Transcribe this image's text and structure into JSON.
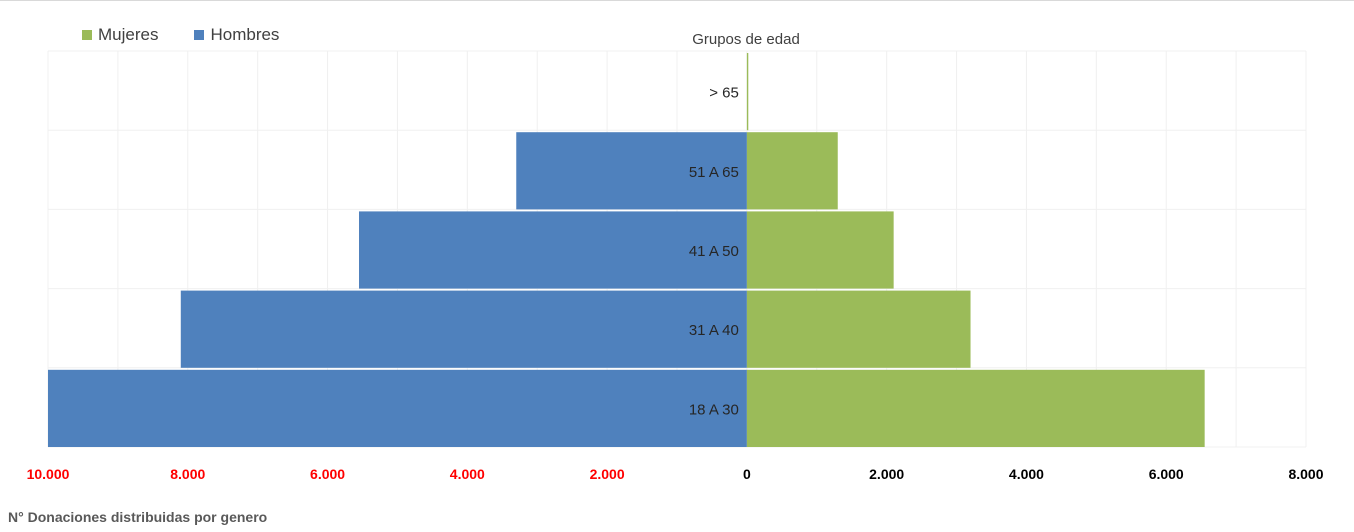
{
  "chart_data": {
    "type": "bar",
    "orientation": "horizontal-diverging",
    "categories": [
      "18 A 30",
      "31 A 40",
      "41 A 50",
      "51 A 65",
      "> 65"
    ],
    "series": [
      {
        "name": "Hombres",
        "values": [
          10000,
          8100,
          5550,
          3300,
          0
        ],
        "color": "#4f81bd"
      },
      {
        "name": "Mujeres",
        "values": [
          6550,
          3200,
          2100,
          1300,
          20
        ],
        "color": "#9bbb59"
      }
    ],
    "category_axis_title": "Grupos de edad",
    "value_axis_title": "N° Donaciones distribuidas por genero",
    "xlim": [
      -10000,
      8000
    ],
    "x_tick_values": [
      -10000,
      -8000,
      -6000,
      -4000,
      -2000,
      0,
      2000,
      4000,
      6000,
      8000
    ],
    "x_tick_labels": [
      "10.000",
      "8.000",
      "6.000",
      "4.000",
      "2.000",
      "0",
      "2.000",
      "4.000",
      "6.000",
      "8.000"
    ],
    "negative_tick_color": "#ff0000",
    "positive_tick_color": "#000000",
    "grid": true,
    "legend_position": "top-left"
  }
}
